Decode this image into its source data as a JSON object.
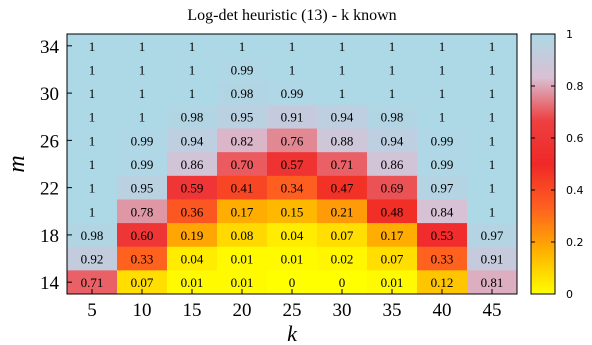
{
  "chart_data": {
    "type": "heatmap",
    "title": "Log-det heuristic (13) - k known",
    "xlabel": "k",
    "ylabel": "m",
    "x_categories": [
      "5",
      "10",
      "15",
      "20",
      "25",
      "30",
      "35",
      "40",
      "45"
    ],
    "y_values": [
      34,
      32,
      30,
      28,
      26,
      24,
      22,
      20,
      18,
      16,
      14
    ],
    "y_tick_labels": [
      "34",
      "30",
      "26",
      "22",
      "18",
      "14"
    ],
    "values": [
      [
        1,
        1,
        1,
        1,
        1,
        1,
        1,
        1,
        1
      ],
      [
        1,
        1,
        1,
        0.99,
        1,
        1,
        1,
        1,
        1
      ],
      [
        1,
        1,
        1,
        0.98,
        0.99,
        1,
        1,
        1,
        1
      ],
      [
        1,
        1,
        0.98,
        0.95,
        0.91,
        0.94,
        0.98,
        1,
        1
      ],
      [
        1,
        0.99,
        0.94,
        0.82,
        0.76,
        0.88,
        0.94,
        0.99,
        1
      ],
      [
        1,
        0.99,
        0.86,
        0.7,
        0.57,
        0.71,
        0.86,
        0.99,
        1
      ],
      [
        1,
        0.95,
        0.59,
        0.41,
        0.34,
        0.47,
        0.69,
        0.97,
        1
      ],
      [
        1,
        0.78,
        0.36,
        0.17,
        0.15,
        0.21,
        0.48,
        0.84,
        1
      ],
      [
        0.98,
        0.6,
        0.19,
        0.08,
        0.04,
        0.07,
        0.17,
        0.53,
        0.97
      ],
      [
        0.92,
        0.33,
        0.04,
        0.01,
        0.01,
        0.02,
        0.07,
        0.33,
        0.91
      ],
      [
        0.71,
        0.07,
        0.01,
        0.01,
        0,
        0,
        0.01,
        0.12,
        0.81
      ]
    ],
    "cell_labels": [
      [
        "1",
        "1",
        "1",
        "1",
        "1",
        "1",
        "1",
        "1",
        "1"
      ],
      [
        "1",
        "1",
        "1",
        "0.99",
        "1",
        "1",
        "1",
        "1",
        "1"
      ],
      [
        "1",
        "1",
        "1",
        "0.98",
        "0.99",
        "1",
        "1",
        "1",
        "1"
      ],
      [
        "1",
        "1",
        "0.98",
        "0.95",
        "0.91",
        "0.94",
        "0.98",
        "1",
        "1"
      ],
      [
        "1",
        "0.99",
        "0.94",
        "0.82",
        "0.76",
        "0.88",
        "0.94",
        "0.99",
        "1"
      ],
      [
        "1",
        "0.99",
        "0.86",
        "0.70",
        "0.57",
        "0.71",
        "0.86",
        "0.99",
        "1"
      ],
      [
        "1",
        "0.95",
        "0.59",
        "0.41",
        "0.34",
        "0.47",
        "0.69",
        "0.97",
        "1"
      ],
      [
        "1",
        "0.78",
        "0.36",
        "0.17",
        "0.15",
        "0.21",
        "0.48",
        "0.84",
        "1"
      ],
      [
        "0.98",
        "0.60",
        "0.19",
        "0.08",
        "0.04",
        "0.07",
        "0.17",
        "0.53",
        "0.97"
      ],
      [
        "0.92",
        "0.33",
        "0.04",
        "0.01",
        "0.01",
        "0.02",
        "0.07",
        "0.33",
        "0.91"
      ],
      [
        "0.71",
        "0.07",
        "0.01",
        "0.01",
        "0",
        "0",
        "0.01",
        "0.12",
        "0.81"
      ]
    ],
    "colorbar": {
      "range": [
        0,
        1
      ],
      "ticks": [
        "0",
        "0.2",
        "0.4",
        "0.6",
        "0.8",
        "1"
      ],
      "colormap": [
        "#ffff00",
        "#ffb000",
        "#ff6020",
        "#f02828",
        "#ee4040",
        "#d9c0d4",
        "#add8e6"
      ]
    },
    "legend": "none",
    "grid": false
  }
}
